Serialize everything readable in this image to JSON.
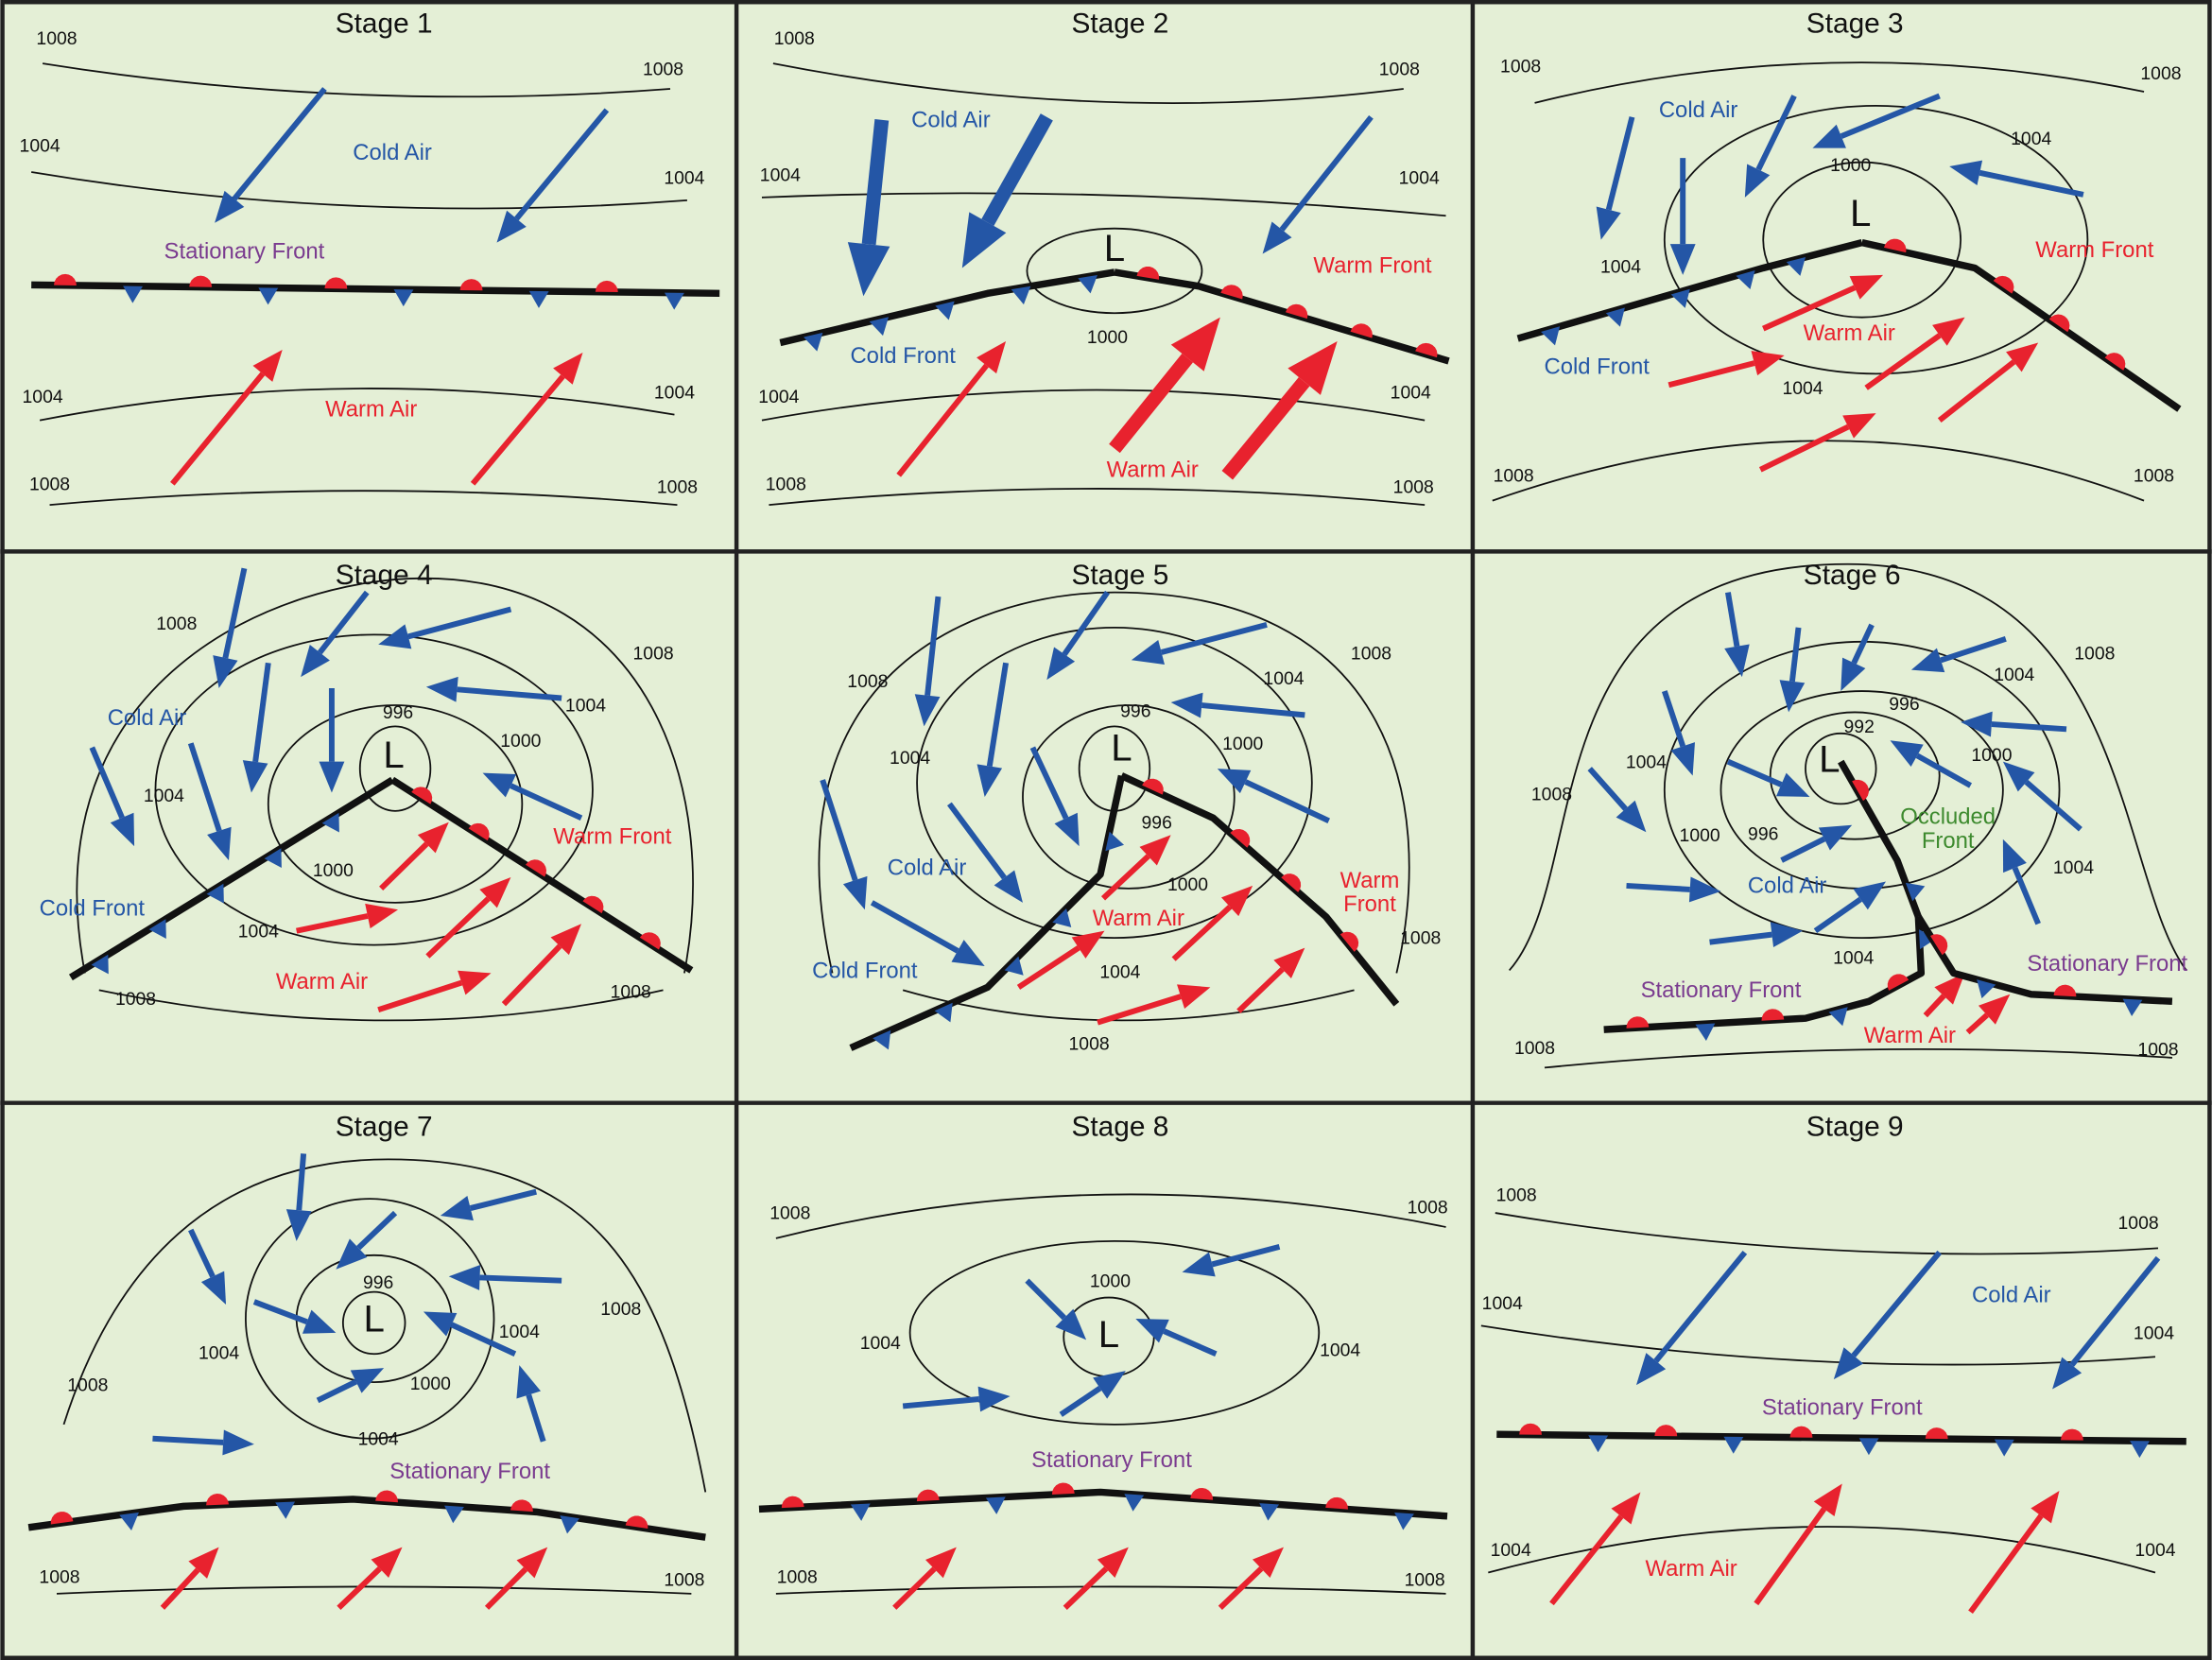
{
  "panels": [
    {
      "title": "Stage 1",
      "labels": [
        "1008",
        "1008",
        "1004",
        "1004",
        "Cold Air",
        "Stationary Front",
        "1004",
        "1004",
        "Warm Air",
        "1008",
        "1008"
      ]
    },
    {
      "title": "Stage 2",
      "labels": [
        "1008",
        "1008",
        "Cold Air",
        "1004",
        "1004",
        "L",
        "Warm Front",
        "Cold Front",
        "1000",
        "1004",
        "1004",
        "Warm Air",
        "1008",
        "1008"
      ]
    },
    {
      "title": "Stage 3",
      "labels": [
        "1008",
        "1008",
        "Cold Air",
        "1004",
        "1000",
        "L",
        "Warm Front",
        "1004",
        "Warm Air",
        "Cold Front",
        "1004",
        "1008",
        "1008"
      ]
    },
    {
      "title": "Stage 4",
      "labels": [
        "1008",
        "1008",
        "1004",
        "Cold Air",
        "996",
        "1000",
        "L",
        "1004",
        "Warm Front",
        "1000",
        "Cold Front",
        "1004",
        "Warm Air",
        "1008",
        "1008"
      ]
    },
    {
      "title": "Stage 5",
      "labels": [
        "1008",
        "1004",
        "1008",
        "996",
        "1000",
        "L",
        "1004",
        "996",
        "Cold Air",
        [
          "Warm",
          "Front"
        ],
        "1000",
        "Warm Air",
        "Cold Front",
        "1004",
        "1008",
        "1008"
      ]
    },
    {
      "title": "Stage 6",
      "labels": [
        "1008",
        "1004",
        "996",
        "992",
        "L",
        "1000",
        "1004",
        "1008",
        [
          "Occluded",
          "Front"
        ],
        "1000",
        "996",
        "Cold Air",
        "1004",
        "1004",
        "Stationary Front",
        "Stationary Front",
        "Warm Air",
        "1008",
        "1008"
      ]
    },
    {
      "title": "Stage 7",
      "labels": [
        "996",
        "1008",
        "L",
        "1004",
        "1004",
        "1000",
        "1008",
        "1004",
        "Stationary Front",
        "1008",
        "1008"
      ]
    },
    {
      "title": "Stage 8",
      "labels": [
        "1008",
        "1008",
        "1000",
        "1004",
        "1004",
        "L",
        "Stationary Front",
        "1008",
        "1008"
      ]
    },
    {
      "title": "Stage 9",
      "labels": [
        "1008",
        "1008",
        "Cold Air",
        "1004",
        "1004",
        "Stationary Front",
        "1004",
        "Warm Air",
        "1004"
      ]
    }
  ]
}
